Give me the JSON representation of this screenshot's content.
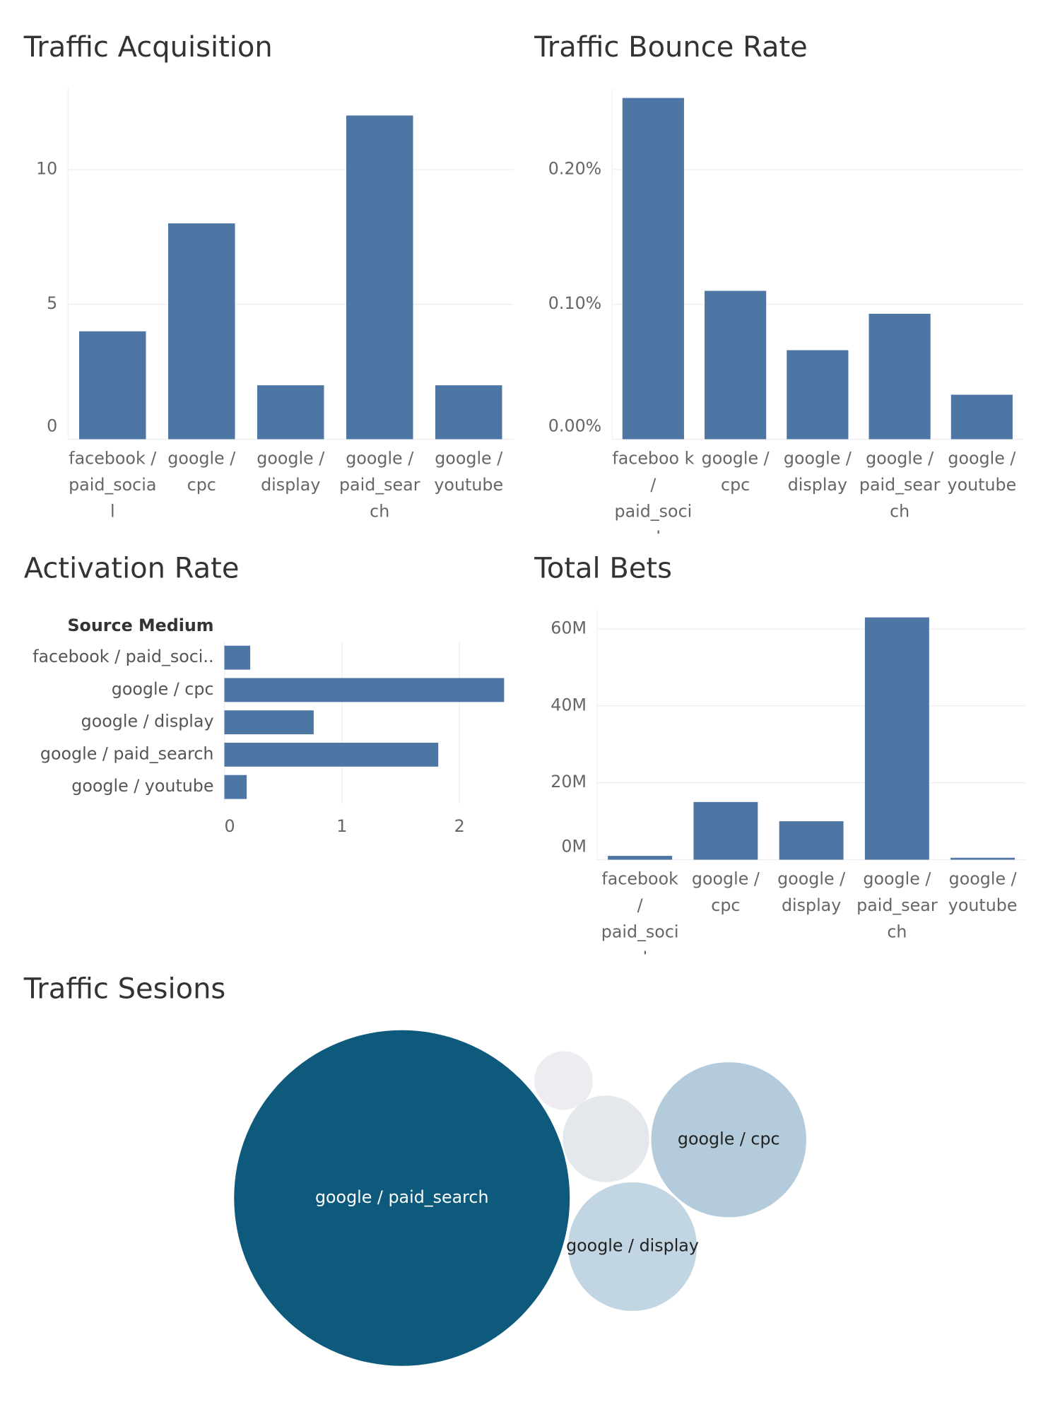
{
  "chart_data": [
    {
      "type": "bar",
      "title": "Traffic Acquisition",
      "categories": [
        "facebook / paid_social",
        "google / cpc",
        "google / display",
        "google / paid_search",
        "google / youtube"
      ],
      "values": [
        4,
        8,
        2,
        12,
        2
      ],
      "color": "#4e76a5",
      "ylim": [
        0,
        13
      ],
      "yticks": [
        0,
        5,
        10
      ],
      "grid": true
    },
    {
      "type": "bar",
      "title": "Traffic Bounce Rate",
      "categories": [
        "faceboo k / paid_social",
        "google / cpc",
        "google / display",
        "google / paid_search",
        "google / youtube"
      ],
      "values": [
        0.253,
        0.11,
        0.066,
        0.093,
        0.033
      ],
      "color": "#4e76a5",
      "ylim": [
        0,
        0.26
      ],
      "yticks": [
        {
          "value": 0,
          "label": "0.00%"
        },
        {
          "value": 0.1,
          "label": "0.10%"
        },
        {
          "value": 0.2,
          "label": "0.20%"
        }
      ],
      "grid": true
    },
    {
      "type": "hbar",
      "title": "Activation Rate",
      "y_axis_title": "Source Medium",
      "categories": [
        "facebook / paid_soci..",
        "google / cpc",
        "google / display",
        "google / paid_search",
        "google / youtube"
      ],
      "values": [
        0.22,
        2.38,
        0.76,
        1.82,
        0.19
      ],
      "color": "#4e76a5",
      "xlim": [
        0,
        2.45
      ],
      "xticks": [
        0,
        1,
        2
      ],
      "grid": true
    },
    {
      "type": "bar",
      "title": "Total Bets",
      "categories": [
        "facebook / paid_social",
        "google / cpc",
        "google / display",
        "google / paid_search",
        "google / youtube"
      ],
      "values": [
        1000000,
        15000000,
        10000000,
        63000000,
        500000
      ],
      "color": "#4e76a5",
      "ylim": [
        0,
        65000000
      ],
      "yticks": [
        {
          "value": 0,
          "label": "0M"
        },
        {
          "value": 20000000,
          "label": "20M"
        },
        {
          "value": 40000000,
          "label": "40M"
        },
        {
          "value": 60000000,
          "label": "60M"
        }
      ],
      "grid": true
    },
    {
      "type": "bubble",
      "title": "Traffic Sesions",
      "categories": [
        "google / paid_search",
        "google / cpc",
        "google / display",
        null,
        null
      ],
      "values": [
        36.1,
        7.7,
        5.3,
        2.4,
        1.1
      ],
      "colors": [
        "#0d5a7d",
        "#b3cbdb",
        "#c2d5e2",
        "#e4e7ec",
        "#eeecf0"
      ]
    }
  ]
}
